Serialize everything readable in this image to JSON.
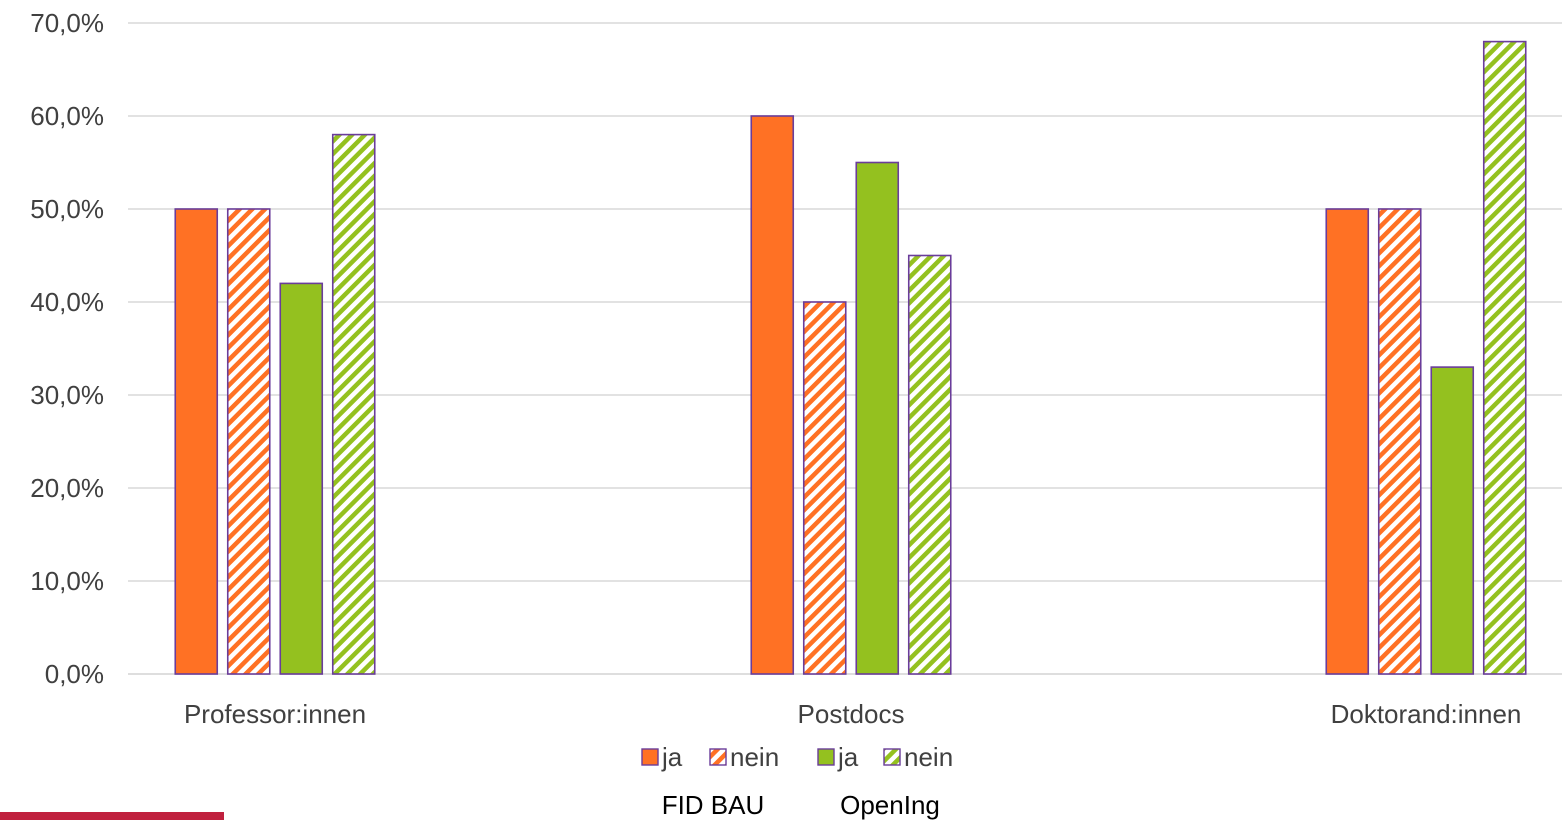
{
  "chart_data": {
    "type": "bar",
    "title": "",
    "xlabel": "",
    "ylabel": "",
    "ylim": [
      0,
      70
    ],
    "y_ticks": [
      "0,0%",
      "10,0%",
      "20,0%",
      "30,0%",
      "40,0%",
      "50,0%",
      "60,0%",
      "70,0%"
    ],
    "y_tick_values": [
      0,
      10,
      20,
      30,
      40,
      50,
      60,
      70
    ],
    "grid": true,
    "legend_position": "bottom",
    "categories": [
      "Professor:innen",
      "Postdocs",
      "Doktorand:innen"
    ],
    "series": [
      {
        "name": "ja",
        "group": "FID BAU",
        "values": [
          50,
          60,
          50
        ],
        "color": "#ff7124",
        "pattern": "solid"
      },
      {
        "name": "nein",
        "group": "FID BAU",
        "values": [
          50,
          40,
          50
        ],
        "color": "#ff7124",
        "pattern": "hatched"
      },
      {
        "name": "ja",
        "group": "OpenIng",
        "values": [
          42,
          55,
          33
        ],
        "color": "#94c11f",
        "pattern": "solid"
      },
      {
        "name": "nein",
        "group": "OpenIng",
        "values": [
          58,
          45,
          68
        ],
        "color": "#94c11f",
        "pattern": "hatched"
      }
    ],
    "legend_groups": [
      "FID BAU",
      "OpenIng"
    ],
    "bar_outline_color": "#6a3d9a",
    "accent_strip_color": "#c0213e"
  }
}
